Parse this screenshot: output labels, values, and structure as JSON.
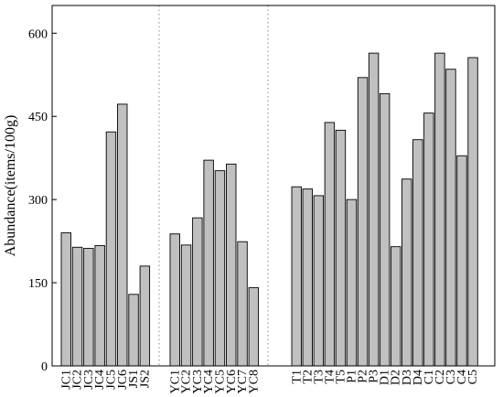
{
  "chart_data": {
    "type": "bar",
    "title": "",
    "xlabel": "",
    "ylabel": "Abundance(items/100g)",
    "ylim": [
      0,
      650
    ],
    "yticks": [
      0,
      150,
      300,
      450,
      600
    ],
    "grid": false,
    "group_separator": "dotted",
    "bar_color": "#c0c0c0",
    "bar_edge_color": "#000000",
    "groups": [
      {
        "categories": [
          "JC1",
          "JC2",
          "JC3",
          "JC4",
          "JC5",
          "JC6",
          "JS1",
          "JS2"
        ],
        "values": [
          240,
          214,
          212,
          217,
          422,
          472,
          129,
          180
        ]
      },
      {
        "categories": [
          "YC1",
          "YC2",
          "YC3",
          "YC4",
          "YC5",
          "YC6",
          "YC7",
          "YC8"
        ],
        "values": [
          238,
          218,
          267,
          371,
          352,
          364,
          224,
          141
        ]
      },
      {
        "categories": [
          "T1",
          "T2",
          "T3",
          "T4",
          "T5",
          "P1",
          "P2",
          "P3",
          "D1",
          "D2",
          "D3",
          "D4",
          "C1",
          "C2",
          "C3",
          "C4",
          "C5"
        ],
        "values": [
          323,
          319,
          307,
          439,
          425,
          300,
          520,
          564,
          491,
          215,
          337,
          408,
          456,
          564,
          535,
          379,
          556
        ]
      }
    ]
  }
}
